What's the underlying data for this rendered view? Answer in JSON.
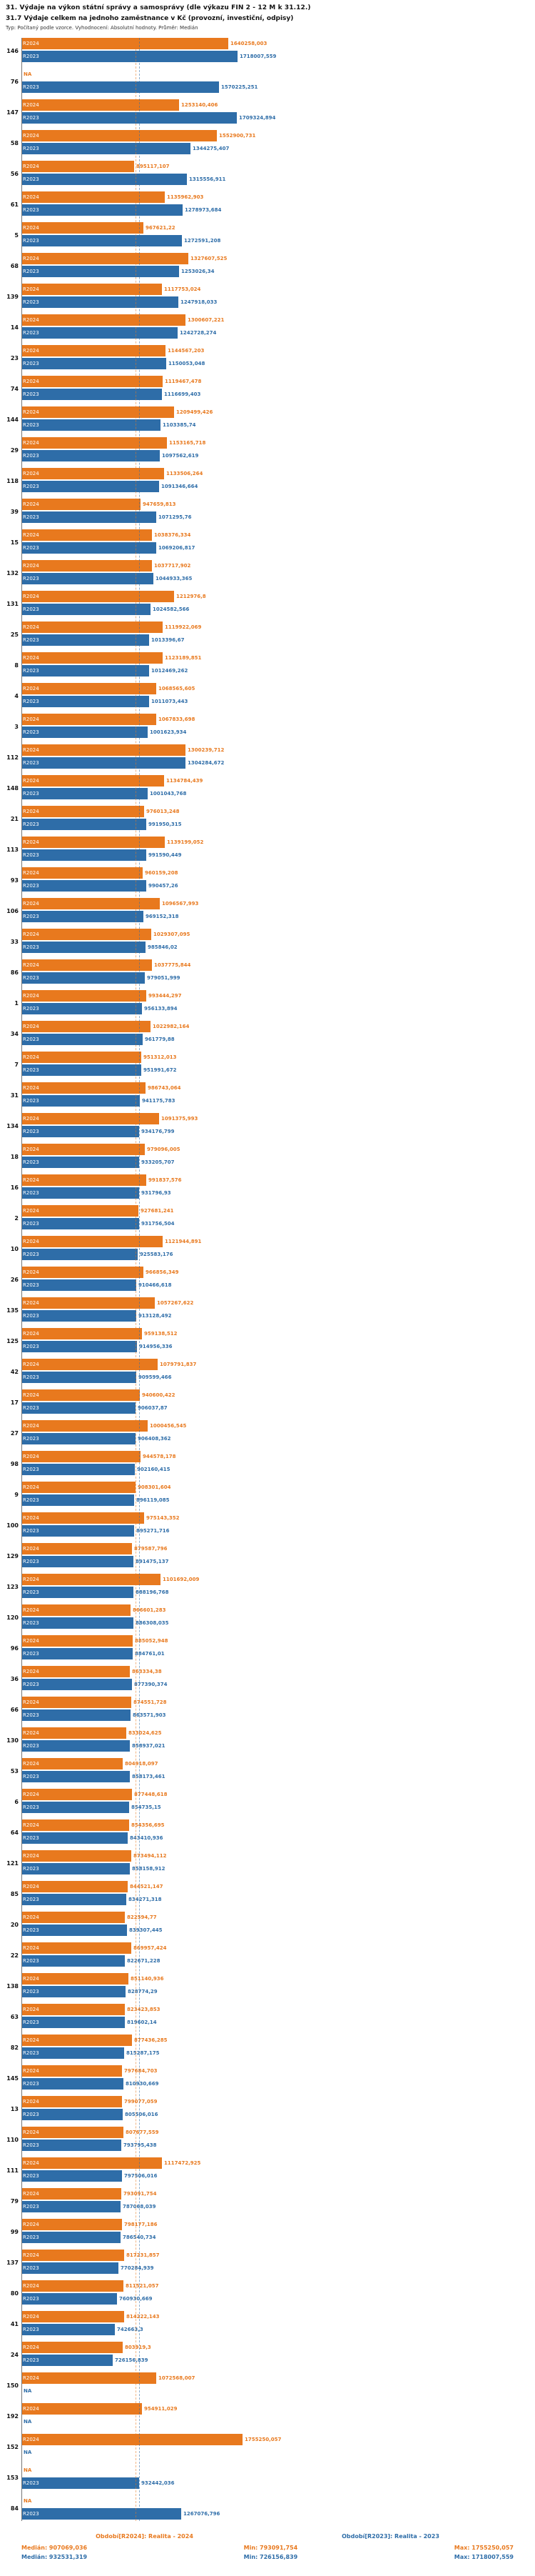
{
  "title": "31. Výdaje na výkon státní správy a samosprávy (dle výkazu FIN 2 - 12 M k 31.12.)",
  "subtitle": "31.7 Výdaje celkem na jednoho zaměstnance v Kč (provozní, investiční, odpisy)",
  "meta": "Typ: Počítaný podle vzorce. Vyhodnocení: Absolutní hodnoty. Průměr: Medián",
  "na_label": "NA",
  "chart_data": {
    "type": "bar",
    "orientation": "horizontal",
    "legend_position": "bottom",
    "categories": [
      "146",
      "76",
      "147",
      "58",
      "56",
      "61",
      "5",
      "68",
      "139",
      "14",
      "23",
      "74",
      "144",
      "29",
      "118",
      "39",
      "15",
      "132",
      "131",
      "25",
      "8",
      "4",
      "3",
      "112",
      "148",
      "21",
      "113",
      "93",
      "106",
      "33",
      "86",
      "1",
      "34",
      "7",
      "31",
      "134",
      "18",
      "16",
      "2",
      "10",
      "26",
      "135",
      "125",
      "42",
      "17",
      "27",
      "98",
      "9",
      "100",
      "129",
      "123",
      "120",
      "96",
      "36",
      "66",
      "130",
      "53",
      "6",
      "64",
      "121",
      "85",
      "20",
      "22",
      "138",
      "63",
      "82",
      "145",
      "13",
      "110",
      "111",
      "79",
      "99",
      "137",
      "80",
      "41",
      "24",
      "150",
      "192",
      "152",
      "153",
      "84"
    ],
    "series": [
      {
        "name": "R2024",
        "color": "#e8791e",
        "median_value": 907069.036,
        "values": [
          1640258.003,
          null,
          1253140.406,
          1552900.731,
          895117.107,
          1135962.903,
          967621.22,
          1327607.525,
          1117753.024,
          1300607.221,
          1144567.203,
          1119467.478,
          1209499.426,
          1153165.718,
          1133506.264,
          947659.813,
          1038376.334,
          1037717.902,
          1212976.8,
          1119922.069,
          1123189.851,
          1068565.605,
          1067833.698,
          1300239.712,
          1134784.439,
          976013.248,
          1139199.052,
          960159.208,
          1096567.993,
          1029307.095,
          1037775.844,
          993444.297,
          1022982.164,
          951312.013,
          986743.064,
          1091375.993,
          979096.005,
          991837.576,
          927681.241,
          1121944.891,
          966856.349,
          1057267.622,
          959138.512,
          1079791.837,
          940600.422,
          1000456.545,
          944578.178,
          908301.604,
          975143.352,
          879587.796,
          1101692.009,
          866601.283,
          885052.948,
          863334.38,
          874551.728,
          833024.625,
          804918.097,
          877448.618,
          854356.695,
          873494.112,
          844521.147,
          822594.77,
          869957.424,
          851140.936,
          823423.853,
          877436.285,
          797684.703,
          799077.059,
          807677.559,
          1117472.925,
          793091.754,
          798177.186,
          817231.857,
          811521.057,
          814222.143,
          803919.3,
          1072568.007,
          954911.029,
          1755250.057,
          null,
          null
        ],
        "value_labels": [
          "1640258,003",
          "NA",
          "1253140,406",
          "1552900,731",
          "895117,107",
          "1135962,903",
          "967621,22",
          "1327607,525",
          "1117753,024",
          "1300607,221",
          "1144567,203",
          "1119467,478",
          "1209499,426",
          "1153165,718",
          "1133506,264",
          "947659,813",
          "1038376,334",
          "1037717,902",
          "1212976,8",
          "1119922,069",
          "1123189,851",
          "1068565,605",
          "1067833,698",
          "1300239,712",
          "1134784,439",
          "976013,248",
          "1139199,052",
          "960159,208",
          "1096567,993",
          "1029307,095",
          "1037775,844",
          "993444,297",
          "1022982,164",
          "951312,013",
          "986743,064",
          "1091375,993",
          "979096,005",
          "991837,576",
          "927681,241",
          "1121944,891",
          "966856,349",
          "1057267,622",
          "959138,512",
          "1079791,837",
          "940600,422",
          "1000456,545",
          "944578,178",
          "908301,604",
          "975143,352",
          "879587,796",
          "1101692,009",
          "866601,283",
          "885052,948",
          "863334,38",
          "874551,728",
          "833024,625",
          "804918,097",
          "877448,618",
          "854356,695",
          "873494,112",
          "844521,147",
          "822594,77",
          "869957,424",
          "851140,936",
          "823423,853",
          "877436,285",
          "797684,703",
          "799077,059",
          "807677,559",
          "1117472,925",
          "793091,754",
          "798177,186",
          "817231,857",
          "811521,057",
          "814222,143",
          "803919,3",
          "1072568,007",
          "954911,029",
          "1755250,057",
          "NA",
          "NA"
        ]
      },
      {
        "name": "R2023",
        "color": "#2e6da8",
        "median_value": 932531.319,
        "values": [
          1718007.559,
          1570225.251,
          1709324.894,
          1344275.407,
          1315556.911,
          1278973.684,
          1272591.208,
          1253026.34,
          1247918.033,
          1242728.274,
          1150053.048,
          1116699.403,
          1103385.74,
          1097562.619,
          1091346.664,
          1071295.76,
          1069206.817,
          1044933.365,
          1024582.566,
          1013396.67,
          1012469.262,
          1011073.443,
          1001623.934,
          1304284.672,
          1001043.768,
          991950.315,
          991590.449,
          990457.26,
          969152.318,
          985846.02,
          979051.999,
          956133.894,
          961779.88,
          951991.672,
          941175.783,
          934176.799,
          933205.707,
          931796.93,
          931756.504,
          925583.176,
          910466.618,
          913128.492,
          914956.336,
          909599.466,
          906037.87,
          906408.362,
          902160.415,
          896119.085,
          895271.716,
          891475.137,
          888196.768,
          886308.035,
          884761.01,
          877390.374,
          863571.903,
          858937.021,
          858173.461,
          854735.15,
          843410.936,
          858158.912,
          834271.318,
          839307.445,
          822671.228,
          828774.29,
          819602.14,
          815287.175,
          810930.669,
          805506.016,
          793795.438,
          797506.016,
          787068.039,
          786540.734,
          770284.939,
          760930.669,
          742663.3,
          726156.839,
          null,
          null,
          null,
          932442.036,
          1267076.796
        ],
        "value_labels": [
          "1718007,559",
          "1570225,251",
          "1709324,894",
          "1344275,407",
          "1315556,911",
          "1278973,684",
          "1272591,208",
          "1253026,34",
          "1247918,033",
          "1242728,274",
          "1150053,048",
          "1116699,403",
          "1103385,74",
          "1097562,619",
          "1091346,664",
          "1071295,76",
          "1069206,817",
          "1044933,365",
          "1024582,566",
          "1013396,67",
          "1012469,262",
          "1011073,443",
          "1001623,934",
          "1304284,672",
          "1001043,768",
          "991950,315",
          "991590,449",
          "990457,26",
          "969152,318",
          "985846,02",
          "979051,999",
          "956133,894",
          "961779,88",
          "951991,672",
          "941175,783",
          "934176,799",
          "933205,707",
          "931796,93",
          "931756,504",
          "925583,176",
          "910466,618",
          "913128,492",
          "914956,336",
          "909599,466",
          "906037,87",
          "906408,362",
          "902160,415",
          "896119,085",
          "895271,716",
          "891475,137",
          "888196,768",
          "886308,035",
          "884761,01",
          "877390,374",
          "863571,903",
          "858937,021",
          "858173,461",
          "854735,15",
          "843410,936",
          "858158,912",
          "834271,318",
          "839307,445",
          "822671,228",
          "828774,29",
          "819602,14",
          "815287,175",
          "810930,669",
          "805506,016",
          "793795,438",
          "797506,016",
          "787068,039",
          "786540,734",
          "770284,939",
          "760930,669",
          "742663,3",
          "726156,839",
          "NA",
          "NA",
          "NA",
          "932442,036",
          "1267076,796"
        ]
      }
    ]
  },
  "footer": {
    "period_r2024": "Období[R2024]: Realita - 2024",
    "period_r2023": "Období[R2023]: Realita - 2023",
    "stats_r2024": {
      "median": "Medián: 907069,036",
      "min": "Min: 793091,754",
      "max": "Max: 1755250,057"
    },
    "stats_r2023": {
      "median": "Medián: 932531,319",
      "min": "Min: 726156,839",
      "max": "Max: 1718007,559"
    }
  }
}
